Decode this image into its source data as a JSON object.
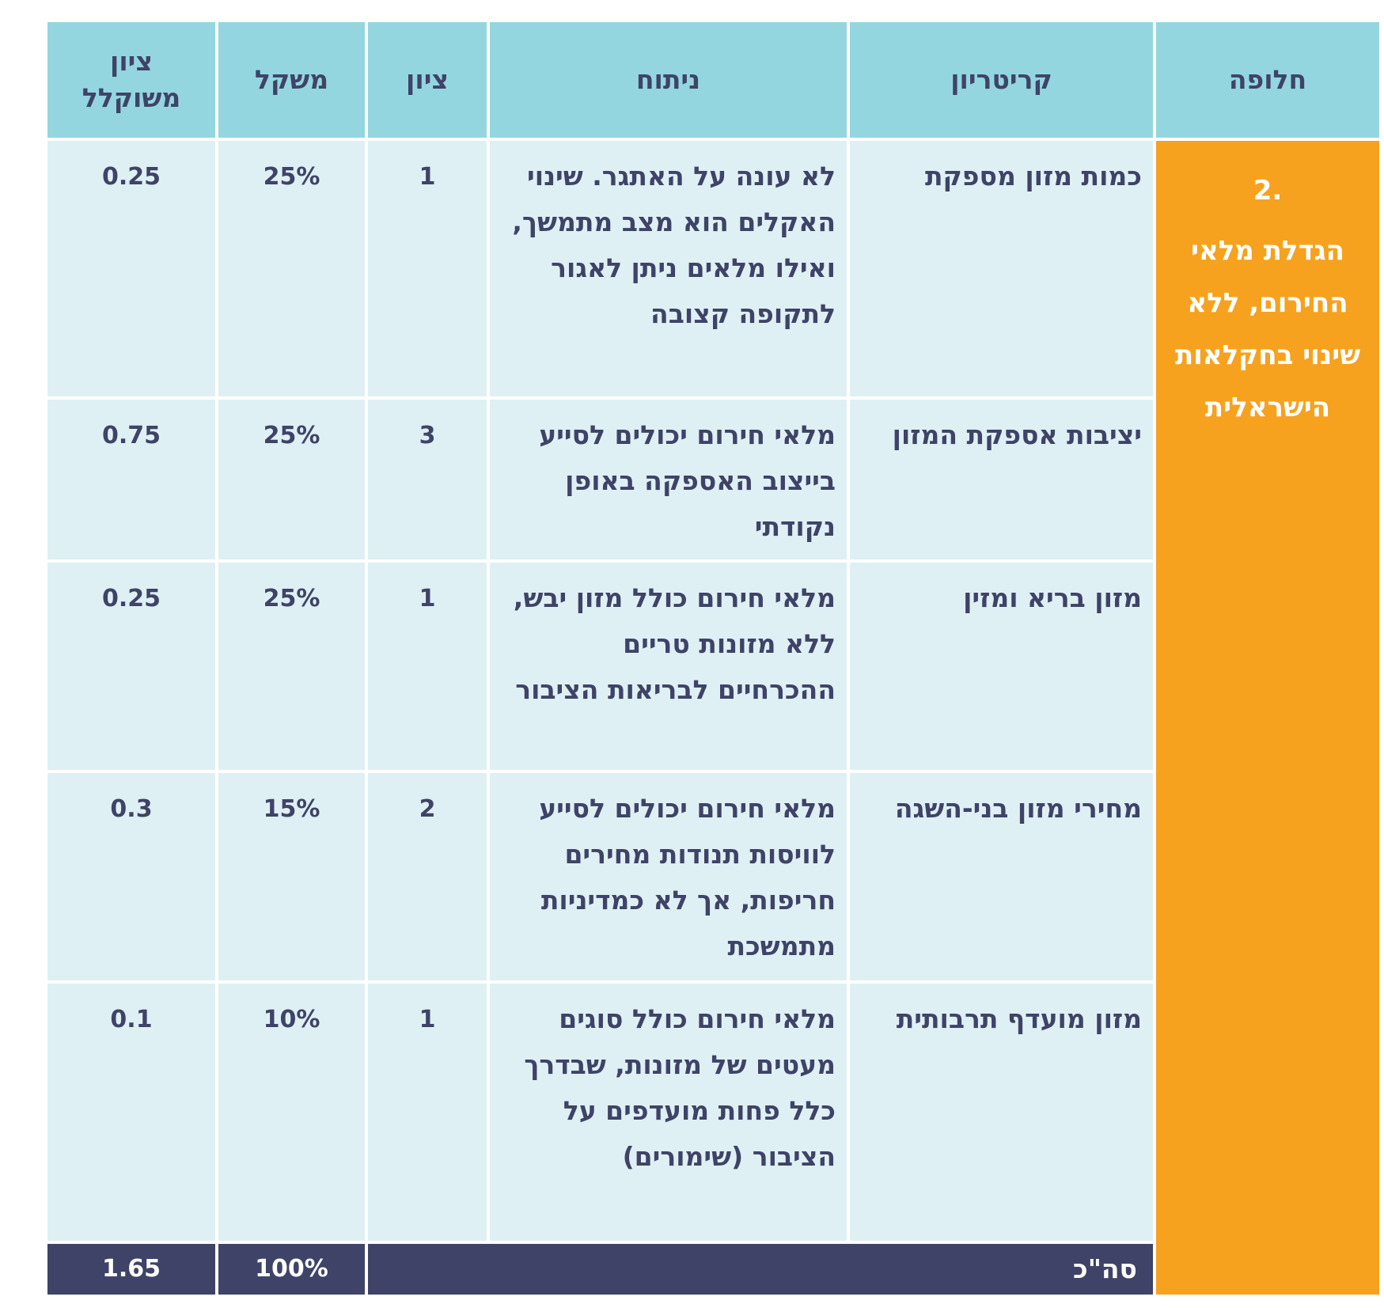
{
  "headers": {
    "alternative": "חלופה",
    "criterion": "קריטריון",
    "analysis": "ניתוח",
    "score": "ציון",
    "weight": "משקל",
    "weighted_score_line1": "ציון",
    "weighted_score_line2": "משוקלל"
  },
  "alternative": {
    "number": "2.",
    "title": "הגדלת מלאי החירום, ללא שינוי בחקלאות הישראלית"
  },
  "rows": [
    {
      "criterion": "כמות מזון מספקת",
      "analysis": "לא עונה על האתגר. שינוי האקלים הוא מצב מתמשך, ואילו מלאים ניתן לאגור לתקופה קצובה",
      "score": "1",
      "weight": "25%",
      "weighted": "0.25"
    },
    {
      "criterion": "יציבות אספקת המזון",
      "analysis": "מלאי חירום יכולים לסייע בייצוב האספקה באופן נקודתי",
      "score": "3",
      "weight": "25%",
      "weighted": "0.75"
    },
    {
      "criterion": "מזון בריא ומזין",
      "analysis": "מלאי חירום כולל מזון יבש, ללא מזונות טריים ההכרחיים לבריאות הציבור",
      "score": "1",
      "weight": "25%",
      "weighted": "0.25"
    },
    {
      "criterion": "מחירי מזון בני-השגה",
      "analysis": "מלאי חירום יכולים לסייע לוויסות תנודות מחירים חריפות, אך לא כמדיניות מתמשכת",
      "score": "2",
      "weight": "15%",
      "weighted": "0.3"
    },
    {
      "criterion": "מזון מועדף תרבותית",
      "analysis": "מלאי חירום כולל סוגים מעטים של מזונות, שבדרך כלל פחות מועדפים על הציבור (שימורים)",
      "score": "1",
      "weight": "10%",
      "weighted": "0.1"
    }
  ],
  "total": {
    "label": "סה\"כ",
    "weight": "100%",
    "weighted": "1.65"
  },
  "colors": {
    "header_bg": "#93d6df",
    "cell_bg": "#dff0f4",
    "alternative_bg": "#f6a21e",
    "total_bg": "#3f4367",
    "text": "#3f4367"
  }
}
